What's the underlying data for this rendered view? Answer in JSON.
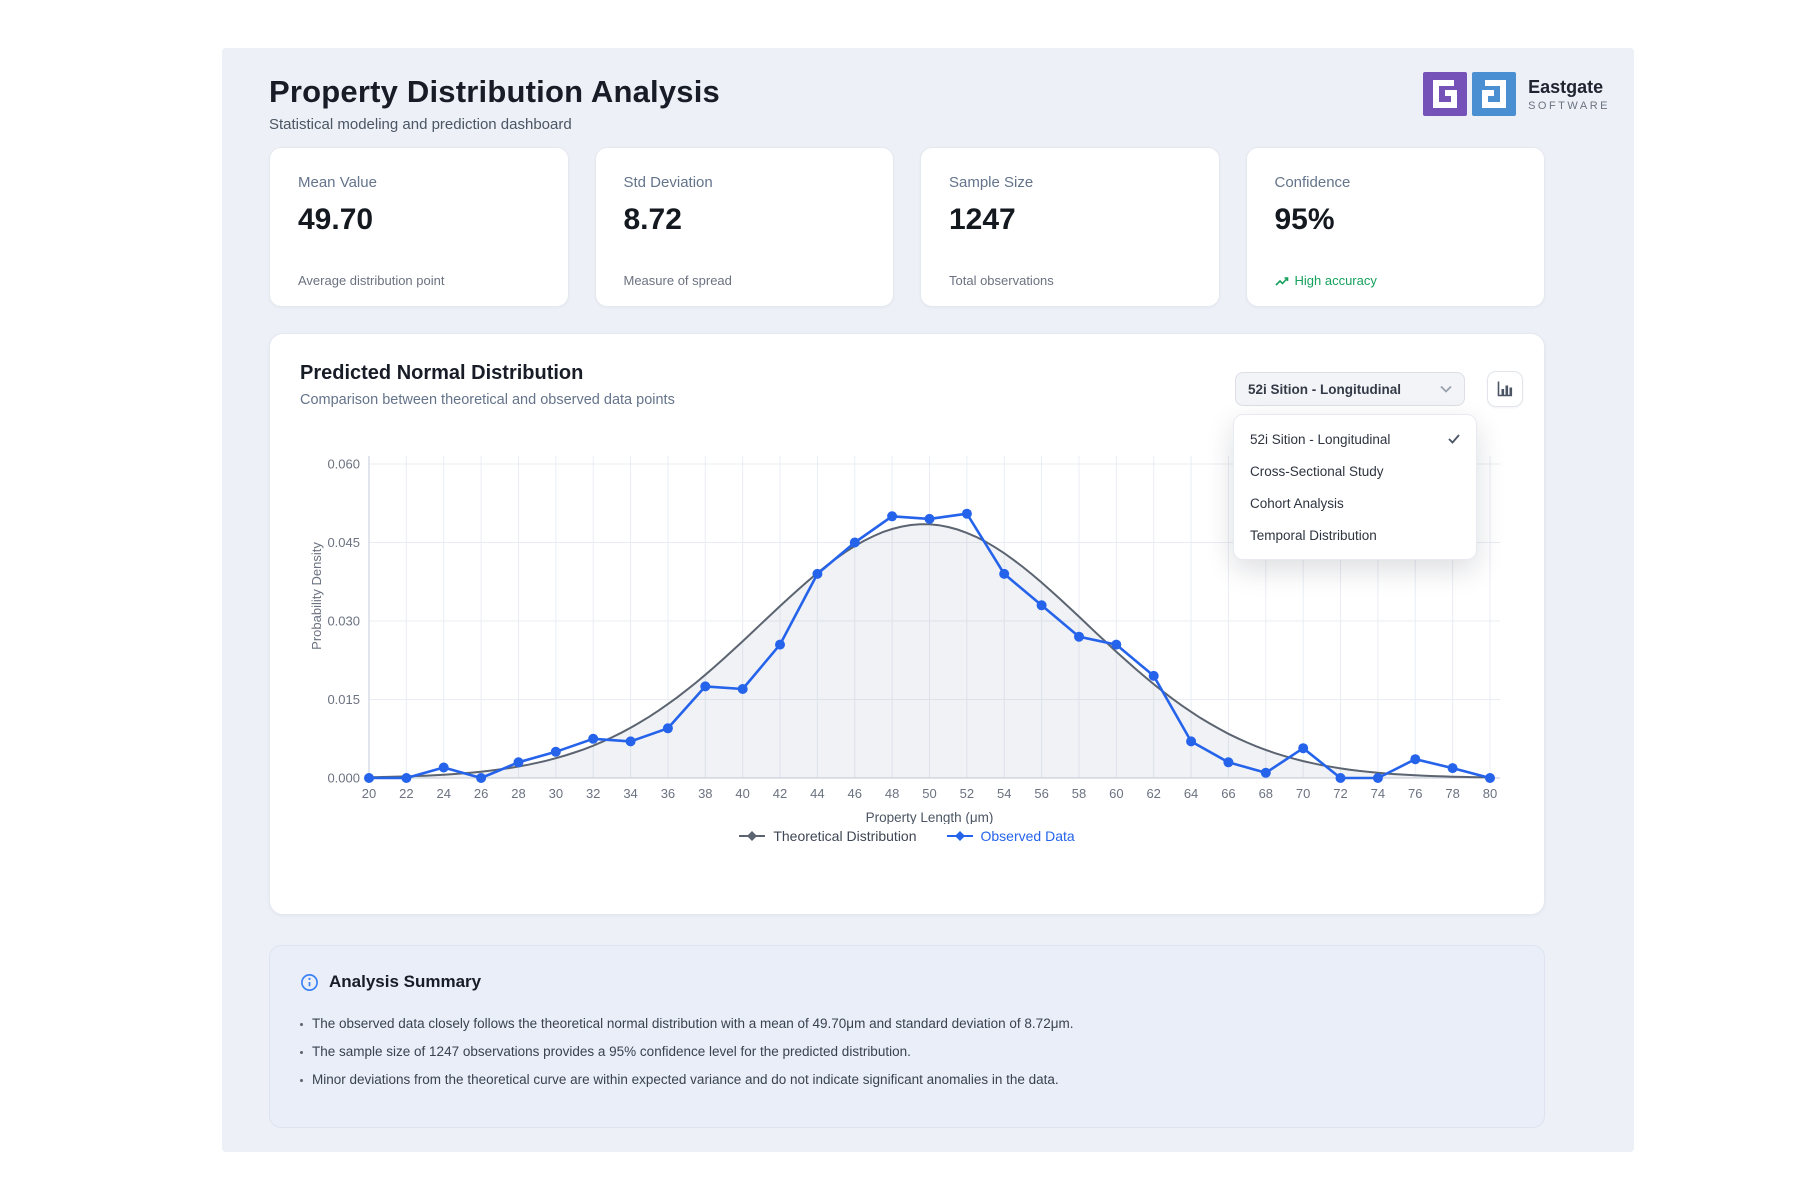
{
  "header": {
    "title": "Property Distribution Analysis",
    "subtitle": "Statistical modeling and prediction dashboard"
  },
  "logo": {
    "brand": "Eastgate",
    "brand_sub": "SOFTWARE",
    "purple": "#7452b8",
    "blue": "#4a8fd2"
  },
  "stats": [
    {
      "label": "Mean Value",
      "value": "49.70",
      "caption": "Average distribution point"
    },
    {
      "label": "Std Deviation",
      "value": "8.72",
      "caption": "Measure of spread"
    },
    {
      "label": "Sample Size",
      "value": "1247",
      "caption": "Total observations"
    },
    {
      "label": "Confidence",
      "value": "95%",
      "caption": "High accuracy",
      "caption_color": "#17a05e"
    }
  ],
  "chart_card": {
    "title": "Predicted Normal Distribution",
    "subtitle": "Comparison between theoretical and observed data points",
    "dropdown": {
      "selected": "52i Sition - Longitudinal",
      "options": [
        {
          "label": "52i Sition - Longitudinal",
          "selected": true
        },
        {
          "label": "Cross-Sectional Study",
          "selected": false
        },
        {
          "label": "Cohort Analysis",
          "selected": false
        },
        {
          "label": "Temporal Distribution",
          "selected": false
        }
      ]
    }
  },
  "chart_data": {
    "type": "line",
    "title": "Predicted Normal Distribution",
    "xlabel": "Property Length (μm)",
    "ylabel": "Probability Density",
    "xlim": [
      20,
      80
    ],
    "ylim": [
      0,
      0.06
    ],
    "xticks": [
      20,
      22,
      24,
      26,
      28,
      30,
      32,
      34,
      36,
      38,
      40,
      42,
      44,
      46,
      48,
      50,
      52,
      54,
      56,
      58,
      60,
      62,
      64,
      66,
      68,
      70,
      72,
      74,
      76,
      78,
      80
    ],
    "yticks": [
      0.0,
      0.015,
      0.03,
      0.045,
      0.06
    ],
    "grid": true,
    "legend_position": "bottom",
    "x": [
      20,
      22,
      24,
      26,
      28,
      30,
      32,
      34,
      36,
      38,
      40,
      42,
      44,
      46,
      48,
      50,
      52,
      54,
      56,
      58,
      60,
      62,
      64,
      66,
      68,
      70,
      72,
      74,
      76,
      78,
      80
    ],
    "series": [
      {
        "name": "Theoretical Distribution",
        "color": "#5b6470",
        "curve": "gaussian",
        "mean": 49.7,
        "std": 8.72,
        "peak": 0.0485,
        "values": [
          0.00015,
          0.00031,
          0.00063,
          0.00121,
          0.00219,
          0.00378,
          0.00618,
          0.00959,
          0.01412,
          0.01972,
          0.02612,
          0.03284,
          0.03917,
          0.04432,
          0.04759,
          0.04847,
          0.04684,
          0.04295,
          0.03736,
          0.03083,
          0.02414,
          0.01794,
          0.01264,
          0.00845,
          0.00536,
          0.00323,
          0.00184,
          0.001,
          0.00051,
          0.00025,
          0.00012
        ]
      },
      {
        "name": "Observed Data",
        "color": "#2563eb",
        "values": [
          0,
          0,
          0.002,
          0,
          0.003,
          0.005,
          0.0075,
          0.007,
          0.0095,
          0.0175,
          0.017,
          0.0255,
          0.039,
          0.045,
          0.05,
          0.0495,
          0.0505,
          0.039,
          0.033,
          0.027,
          0.0255,
          0.0195,
          0.007,
          0.003,
          0.001,
          0.0057,
          0,
          0,
          0.0036,
          0.0019,
          0
        ]
      }
    ]
  },
  "summary": {
    "title": "Analysis Summary",
    "bullets": [
      "The observed data closely follows the theoretical normal distribution with a mean of 49.70μm and standard deviation of 8.72μm.",
      "The sample size of 1247 observations provides a 95% confidence level for the predicted distribution.",
      "Minor deviations from the theoretical curve are within expected variance and do not indicate significant anomalies in the data."
    ]
  }
}
